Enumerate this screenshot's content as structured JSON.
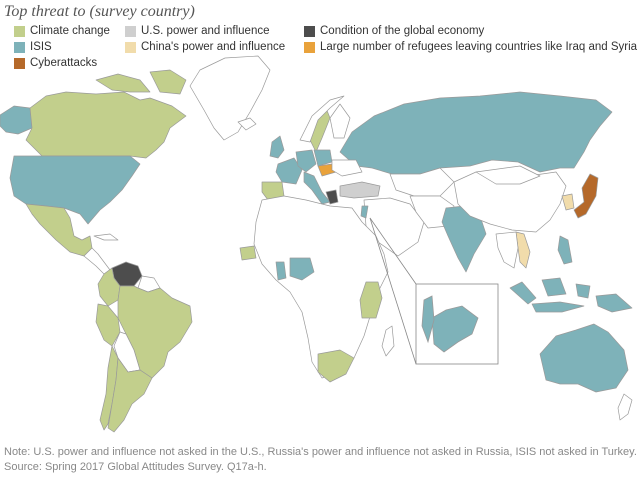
{
  "title": "Top threat to (survey country)",
  "legend": [
    {
      "label": "Climate change",
      "color": "#c2cf8c",
      "icon": "climate-change-swatch"
    },
    {
      "label": "ISIS",
      "color": "#7eb2b9",
      "icon": "isis-swatch"
    },
    {
      "label": "Cyberattacks",
      "color": "#b5692a",
      "icon": "cyberattacks-swatch"
    },
    {
      "label": "U.S. power and influence",
      "color": "#cfcfcf",
      "icon": "us-power-swatch"
    },
    {
      "label": "China's power and influence",
      "color": "#f1dcab",
      "icon": "china-power-swatch"
    },
    {
      "label": "Condition of the global economy",
      "color": "#4d4d4d",
      "icon": "global-economy-swatch"
    },
    {
      "label": "Large number of refugees leaving countries like Iraq and Syria",
      "color": "#e9a23b",
      "icon": "refugees-swatch"
    }
  ],
  "colors": {
    "no_data": "#ffffff",
    "border": "#9a9a9a",
    "inset_border": "#888888"
  },
  "note": {
    "line1": "Note: U.S. power and influence not asked in the U.S., Russia's power and influence not asked in Russia, ISIS not asked in Turkey.",
    "line2": "Source: Spring 2017 Global Attitudes Survey. Q17a-h."
  }
}
